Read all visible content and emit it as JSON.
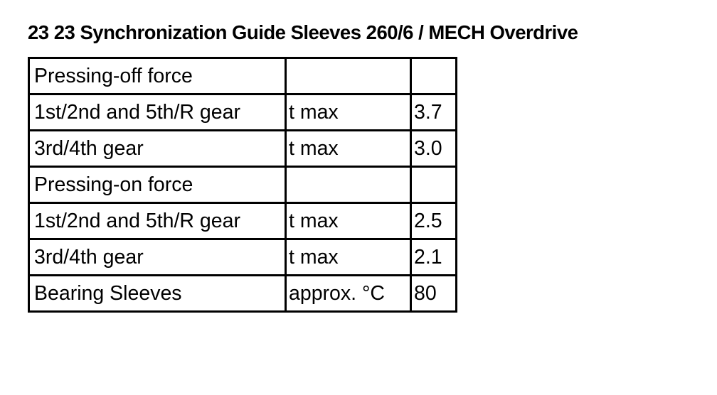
{
  "title": "23 23 Synchronization Guide Sleeves 260/6 / MECH Overdrive",
  "rows": [
    [
      "Pressing-off force",
      "",
      ""
    ],
    [
      "1st/2nd and 5th/R gear",
      "t max",
      "3.7"
    ],
    [
      "3rd/4th gear",
      "t max",
      "3.0"
    ],
    [
      "Pressing-on force",
      "",
      ""
    ],
    [
      "1st/2nd and 5th/R gear",
      "t max",
      "2.5"
    ],
    [
      "3rd/4th gear",
      "t max",
      "2.1"
    ],
    [
      "Bearing Sleeves",
      "approx. °C",
      "80"
    ]
  ]
}
